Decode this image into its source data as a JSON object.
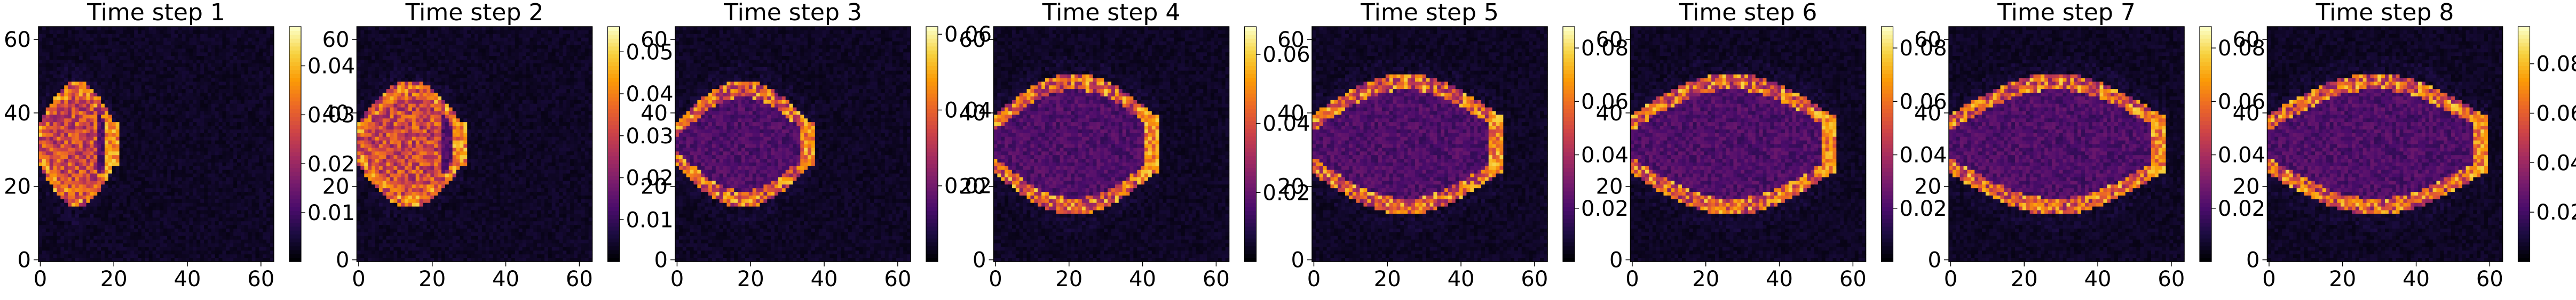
{
  "colormap": "magma",
  "colormap_stops": [
    "#000004",
    "#1b0c41",
    "#4a0c6b",
    "#781c6d",
    "#a52c60",
    "#cf4446",
    "#ed6925",
    "#fb9b06",
    "#f7d13d",
    "#fcfdbf"
  ],
  "chart_data": [
    {
      "type": "heatmap",
      "title": "Time step 1",
      "front_x": 20,
      "xticks": [
        0,
        20,
        40,
        60
      ],
      "yticks": [
        0,
        20,
        40,
        60
      ],
      "xlim": [
        0,
        63
      ],
      "ylim": [
        63,
        0
      ],
      "colorbar": {
        "vmin": 0,
        "vmax": 0.048,
        "ticks": [
          0.01,
          0.02,
          0.03,
          0.04
        ],
        "tick_labels": [
          "0.01",
          "0.02",
          "0.03",
          "0.04"
        ]
      }
    },
    {
      "type": "heatmap",
      "title": "Time step 2",
      "front_x": 28,
      "xticks": [
        0,
        20,
        40,
        60
      ],
      "yticks": [
        0,
        20,
        40,
        60
      ],
      "xlim": [
        0,
        63
      ],
      "ylim": [
        63,
        0
      ],
      "colorbar": {
        "vmin": 0,
        "vmax": 0.056,
        "ticks": [
          0.01,
          0.02,
          0.03,
          0.04,
          0.05
        ],
        "tick_labels": [
          "0.01",
          "0.02",
          "0.03",
          "0.04",
          "0.05"
        ]
      }
    },
    {
      "type": "heatmap",
      "title": "Time step 3",
      "front_x": 36,
      "xticks": [
        0,
        20,
        40,
        60
      ],
      "yticks": [
        0,
        20,
        40,
        60
      ],
      "xlim": [
        0,
        63
      ],
      "ylim": [
        63,
        0
      ],
      "colorbar": {
        "vmin": 0,
        "vmax": 0.062,
        "ticks": [
          0.02,
          0.04,
          0.06
        ],
        "tick_labels": [
          "0.02",
          "0.04",
          "0.06"
        ]
      }
    },
    {
      "type": "heatmap",
      "title": "Time step 4",
      "front_x": 43,
      "xticks": [
        0,
        20,
        40,
        60
      ],
      "yticks": [
        0,
        20,
        40,
        60
      ],
      "xlim": [
        0,
        63
      ],
      "ylim": [
        63,
        0
      ],
      "colorbar": {
        "vmin": 0,
        "vmax": 0.068,
        "ticks": [
          0.02,
          0.04,
          0.06
        ],
        "tick_labels": [
          "0.02",
          "0.04",
          "0.06"
        ]
      }
    },
    {
      "type": "heatmap",
      "title": "Time step 5",
      "front_x": 50,
      "xticks": [
        0,
        20,
        40,
        60
      ],
      "yticks": [
        0,
        20,
        40,
        60
      ],
      "xlim": [
        0,
        63
      ],
      "ylim": [
        63,
        0
      ],
      "colorbar": {
        "vmin": 0,
        "vmax": 0.088,
        "ticks": [
          0.02,
          0.04,
          0.06,
          0.08
        ],
        "tick_labels": [
          "0.02",
          "0.04",
          "0.06",
          "0.08"
        ]
      }
    },
    {
      "type": "heatmap",
      "title": "Time step 6",
      "front_x": 54,
      "xticks": [
        0,
        20,
        40,
        60
      ],
      "yticks": [
        0,
        20,
        40,
        60
      ],
      "xlim": [
        0,
        63
      ],
      "ylim": [
        63,
        0
      ],
      "colorbar": {
        "vmin": 0,
        "vmax": 0.088,
        "ticks": [
          0.02,
          0.04,
          0.06,
          0.08
        ],
        "tick_labels": [
          "0.02",
          "0.04",
          "0.06",
          "0.08"
        ]
      }
    },
    {
      "type": "heatmap",
      "title": "Time step 7",
      "front_x": 57,
      "xticks": [
        0,
        20,
        40,
        60
      ],
      "yticks": [
        0,
        20,
        40,
        60
      ],
      "xlim": [
        0,
        63
      ],
      "ylim": [
        63,
        0
      ],
      "colorbar": {
        "vmin": 0,
        "vmax": 0.088,
        "ticks": [
          0.02,
          0.04,
          0.06,
          0.08
        ],
        "tick_labels": [
          "0.02",
          "0.04",
          "0.06",
          "0.08"
        ]
      }
    },
    {
      "type": "heatmap",
      "title": "Time step 8",
      "front_x": 58,
      "xticks": [
        0,
        20,
        40,
        60
      ],
      "yticks": [
        0,
        20,
        40,
        60
      ],
      "xlim": [
        0,
        63
      ],
      "ylim": [
        63,
        0
      ],
      "colorbar": {
        "vmin": 0,
        "vmax": 0.095,
        "ticks": [
          0.02,
          0.04,
          0.06,
          0.08
        ],
        "tick_labels": [
          "0.02",
          "0.04",
          "0.06",
          "0.08"
        ]
      }
    }
  ]
}
